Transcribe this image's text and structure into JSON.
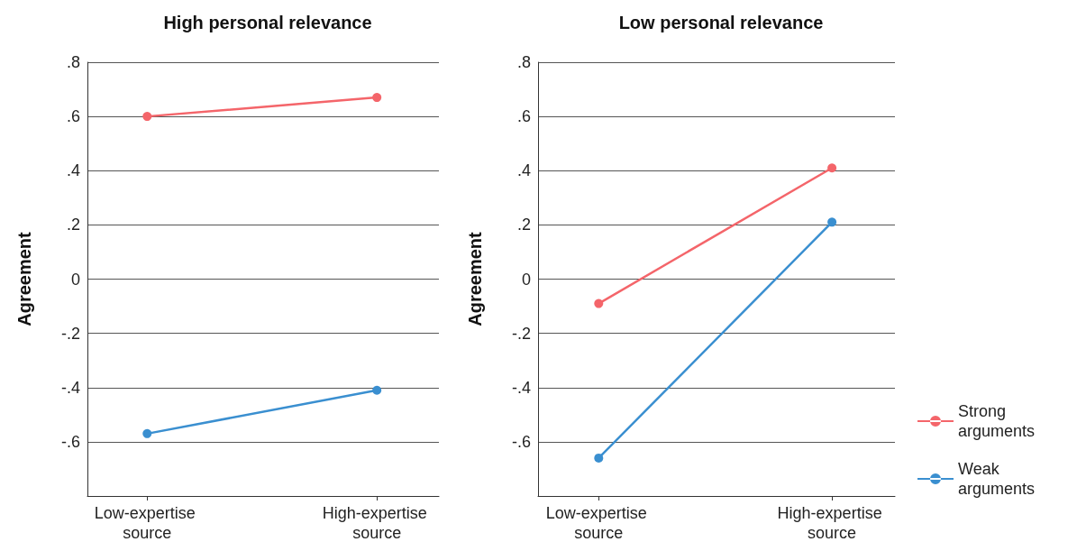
{
  "chart_data": [
    {
      "type": "line",
      "title": "High personal relevance",
      "ylabel": "Agreement",
      "categories": [
        "Low-expertise source",
        "High-expertise source"
      ],
      "series": [
        {
          "color": "#f4656a",
          "values": [
            0.6,
            0.67
          ]
        },
        {
          "color": "#3a8fd0",
          "values": [
            -0.57,
            -0.41
          ]
        }
      ],
      "ylim": [
        -0.8,
        0.8
      ],
      "yticks": [
        {
          "value": -0.8,
          "label": null
        },
        {
          "value": -0.6,
          "label": "-.6"
        },
        {
          "value": -0.4,
          "label": "-.4"
        },
        {
          "value": -0.2,
          "label": "-.2"
        },
        0,
        {
          "value": 0.2,
          "label": ".2"
        },
        {
          "value": 0.4,
          "label": ".4"
        },
        {
          "value": 0.6,
          "label": ".6"
        },
        {
          "value": 0.8,
          "label": ".8"
        }
      ],
      "grid": "y",
      "marker": "circle",
      "line_style": "solid"
    },
    {
      "type": "line",
      "title": "Low personal relevance",
      "ylabel": "Agreement",
      "categories": [
        "Low-expertise source",
        "High-expertise source"
      ],
      "series": [
        {
          "name": "Strong arguments",
          "color": "#f4656a",
          "values": [
            -0.09,
            0.41
          ]
        },
        {
          "name": "Weak arguments",
          "color": "#3a8fd0",
          "values": [
            -0.66,
            0.21
          ]
        }
      ],
      "ylim": [
        -0.8,
        0.8
      ],
      "yticks": [
        {
          "value": -0.8,
          "label": null
        },
        {
          "value": -0.6,
          "label": "-.6"
        },
        {
          "value": -0.4,
          "label": "-.4"
        },
        {
          "value": -0.2,
          "label": "-.2"
        },
        0,
        {
          "value": 0.2,
          "label": ".2"
        },
        {
          "value": 0.4,
          "label": ".4"
        },
        {
          "value": 0.6,
          "label": ".6"
        },
        {
          "value": 0.8,
          "label": ".8"
        }
      ],
      "grid": "y",
      "marker": "circle",
      "line_style": "solid",
      "legend": "right"
    }
  ]
}
